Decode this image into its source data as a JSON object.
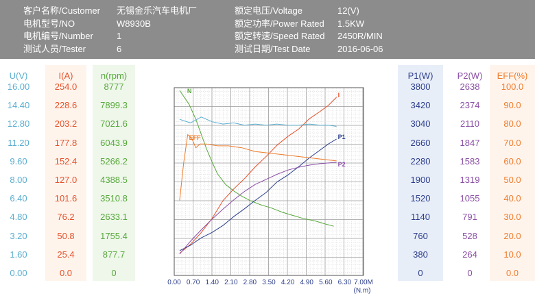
{
  "header": {
    "left": [
      {
        "label": "客户名称/Customer",
        "value": "无锡金乐汽车电机厂"
      },
      {
        "label": "电机型号/NO",
        "value": "W8930B"
      },
      {
        "label": "电机编号/Number",
        "value": "1"
      },
      {
        "label": "测试人员/Tester",
        "value": "6"
      }
    ],
    "right": [
      {
        "label": "额定电压/Voltage",
        "value": "12(V)"
      },
      {
        "label": "额定功率/Power Rated",
        "value": "1.5KW"
      },
      {
        "label": "额定转速/Speed Rated",
        "value": "2450R/MIN"
      },
      {
        "label": "测试日期/Test Date",
        "value": "2016-06-06"
      }
    ]
  },
  "scales": {
    "u": {
      "title": "U(V)",
      "color": "#5aaed0",
      "bg": "#ffffff",
      "values": [
        "16.00",
        "14.40",
        "12.80",
        "11.20",
        "9.60",
        "8.00",
        "6.40",
        "4.80",
        "3.20",
        "1.60",
        "0.00"
      ]
    },
    "i": {
      "title": "I(A)",
      "color": "#e5502a",
      "bg": "#fff4ec",
      "values": [
        "254.0",
        "228.6",
        "203.2",
        "177.8",
        "152.4",
        "127.0",
        "101.6",
        "76.2",
        "50.8",
        "25.4",
        "0.0"
      ]
    },
    "n": {
      "title": "n(rpm)",
      "color": "#58a83c",
      "bg": "#eef7ea",
      "values": [
        "8777",
        "7899.3",
        "7021.6",
        "6043.9",
        "5266.2",
        "4388.5",
        "3510.8",
        "2633.1",
        "1755.4",
        "877.7",
        "0"
      ]
    },
    "p1": {
      "title": "P1(W)",
      "color": "#2c3e8c",
      "bg": "#e8eef8",
      "values": [
        "3800",
        "3420",
        "3040",
        "2660",
        "2280",
        "1900",
        "1520",
        "1140",
        "760",
        "380",
        "0"
      ]
    },
    "p2": {
      "title": "P2(W)",
      "color": "#8a4fa5",
      "bg": "#ffffff",
      "values": [
        "2638",
        "2374",
        "2110",
        "1847",
        "1583",
        "1319",
        "1055",
        "791",
        "528",
        "264",
        "0"
      ]
    },
    "eff": {
      "title": "EFF(%)",
      "color": "#ef7b2a",
      "bg": "#fff4ec",
      "values": [
        "100.0",
        "90.0",
        "80.0",
        "70.0",
        "60.0",
        "50.0",
        "40.0",
        "30.0",
        "20.0",
        "10.0",
        "0.0"
      ]
    }
  },
  "chart_data": {
    "type": "line",
    "xlabel": "(N.m)",
    "xlim": [
      0,
      7.0
    ],
    "x_ticks": [
      "0.00",
      "0.70",
      "1.40",
      "2.10",
      "2.80",
      "3.50",
      "4.20",
      "4.90",
      "5.60",
      "6.30",
      "7.00M"
    ],
    "grid": true,
    "series": [
      {
        "name": "N",
        "color": "#58a83c",
        "unit": "rpm",
        "x": [
          0.2,
          0.55,
          0.8,
          1.0,
          1.2,
          1.4,
          1.6,
          1.9,
          2.2,
          2.5,
          2.8,
          3.2,
          3.6,
          4.0,
          4.4,
          4.8,
          5.2,
          5.6,
          5.9
        ],
        "y": [
          8650,
          8000,
          7300,
          6600,
          5900,
          5300,
          4750,
          4250,
          3950,
          3700,
          3500,
          3300,
          3150,
          2950,
          2800,
          2650,
          2550,
          2400,
          2300
        ]
      },
      {
        "name": "I",
        "color": "#e5502a",
        "unit": "A",
        "x": [
          0.2,
          0.6,
          1.0,
          1.4,
          1.8,
          2.2,
          2.6,
          3.0,
          3.4,
          3.8,
          4.2,
          4.6,
          5.0,
          5.4,
          5.7,
          6.0
        ],
        "y": [
          30,
          42,
          58,
          77,
          101,
          117,
          131,
          147,
          161,
          176,
          188,
          198,
          212,
          222,
          230,
          241
        ]
      },
      {
        "name": "P1",
        "color": "#2c3e8c",
        "unit": "W",
        "x": [
          0.2,
          0.6,
          1.0,
          1.4,
          1.8,
          2.2,
          2.6,
          3.0,
          3.4,
          3.8,
          4.2,
          4.6,
          5.0,
          5.4,
          5.7,
          6.0
        ],
        "y": [
          500,
          610,
          760,
          870,
          1010,
          1190,
          1350,
          1520,
          1680,
          1890,
          2030,
          2200,
          2380,
          2540,
          2660,
          2760
        ]
      },
      {
        "name": "P2",
        "color": "#8a4fa5",
        "unit": "W",
        "x": [
          0.2,
          0.6,
          1.0,
          1.4,
          1.8,
          2.2,
          2.6,
          3.0,
          3.4,
          3.8,
          4.2,
          4.6,
          5.0,
          5.4,
          5.7,
          6.0
        ],
        "y": [
          300,
          480,
          640,
          790,
          930,
          1060,
          1180,
          1280,
          1350,
          1420,
          1480,
          1520,
          1550,
          1570,
          1580,
          1590
        ]
      },
      {
        "name": "EFF",
        "color": "#ef7b2a",
        "unit": "%",
        "x": [
          0.2,
          0.35,
          0.5,
          0.65,
          0.8,
          0.95,
          1.2,
          1.6,
          2.0,
          2.5,
          3.0,
          3.6,
          4.2,
          4.8,
          5.4,
          6.0
        ],
        "y": [
          40,
          60,
          75,
          73,
          68,
          70,
          70,
          69,
          69,
          68,
          66,
          65,
          64,
          63,
          62,
          61
        ]
      },
      {
        "name": "U",
        "color": "#5aaed0",
        "unit": "V",
        "x": [
          0.2,
          0.6,
          1.0,
          1.4,
          1.8,
          2.2,
          2.6,
          3.0,
          3.4,
          3.8,
          4.2,
          4.6,
          5.0,
          5.4,
          5.7,
          6.0
        ],
        "y": [
          13.3,
          13.0,
          13.5,
          13.1,
          12.9,
          13.0,
          12.8,
          12.9,
          12.8,
          12.9,
          12.8,
          12.8,
          12.9,
          12.8,
          12.8,
          12.7
        ]
      }
    ]
  }
}
